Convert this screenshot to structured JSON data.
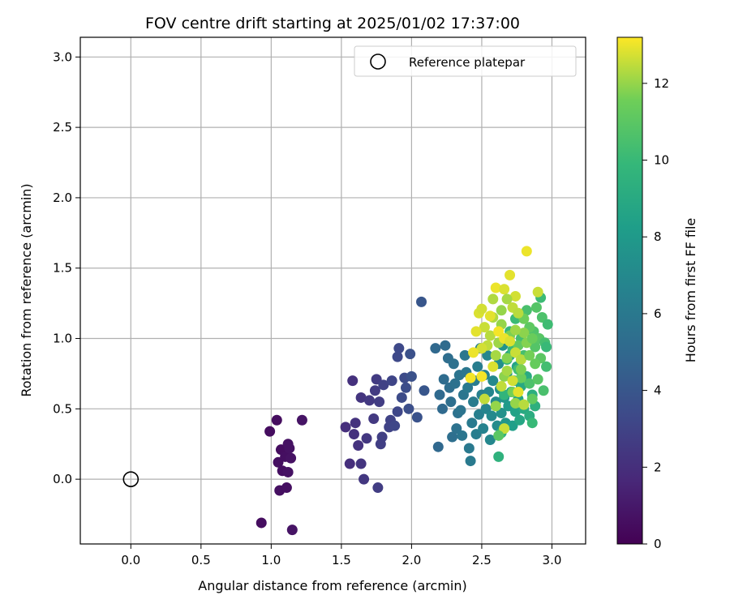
{
  "chart_data": {
    "type": "scatter",
    "title": "FOV centre drift starting at 2025/01/02 17:37:00",
    "xlabel": "Angular distance from reference (arcmin)",
    "ylabel": "Rotation from reference (arcmin)",
    "xlim": [
      -0.36,
      3.24
    ],
    "ylim": [
      -0.46,
      3.14
    ],
    "xticks": [
      "0.0",
      "0.5",
      "1.0",
      "1.5",
      "2.0",
      "2.5",
      "3.0"
    ],
    "yticks": [
      "0.0",
      "0.5",
      "1.0",
      "1.5",
      "2.0",
      "2.5",
      "3.0"
    ],
    "grid": true,
    "legend": {
      "label": "Reference platepar",
      "placement": "top-right"
    },
    "reference_point": {
      "x": 0.0,
      "y": 0.0
    },
    "colorbar": {
      "label": "Hours from first FF file",
      "colormap": "viridis",
      "range": [
        0,
        13.2
      ],
      "ticks": [
        "0",
        "2",
        "4",
        "6",
        "8",
        "10",
        "12"
      ]
    },
    "points": [
      [
        0.93,
        -0.31,
        0.5
      ],
      [
        0.99,
        0.34,
        0.5
      ],
      [
        1.04,
        0.42,
        0.5
      ],
      [
        1.05,
        0.12,
        0.6
      ],
      [
        1.06,
        -0.08,
        0.6
      ],
      [
        1.07,
        0.21,
        0.5
      ],
      [
        1.08,
        0.06,
        0.6
      ],
      [
        1.1,
        0.16,
        0.6
      ],
      [
        1.11,
        -0.06,
        0.6
      ],
      [
        1.12,
        0.05,
        0.7
      ],
      [
        1.12,
        0.25,
        0.7
      ],
      [
        1.13,
        0.22,
        0.7
      ],
      [
        1.14,
        0.15,
        0.7
      ],
      [
        1.15,
        -0.36,
        0.8
      ],
      [
        1.22,
        0.42,
        0.8
      ],
      [
        1.53,
        0.37,
        2.0
      ],
      [
        1.56,
        0.11,
        2.0
      ],
      [
        1.58,
        0.7,
        2.1
      ],
      [
        1.59,
        0.32,
        2.1
      ],
      [
        1.6,
        0.4,
        2.2
      ],
      [
        1.62,
        0.24,
        2.2
      ],
      [
        1.64,
        0.58,
        2.3
      ],
      [
        1.64,
        0.11,
        2.3
      ],
      [
        1.66,
        0.0,
        2.4
      ],
      [
        1.68,
        0.29,
        2.4
      ],
      [
        1.7,
        0.56,
        2.5
      ],
      [
        1.73,
        0.43,
        2.5
      ],
      [
        1.74,
        0.63,
        2.6
      ],
      [
        1.75,
        0.71,
        2.6
      ],
      [
        1.76,
        -0.06,
        2.7
      ],
      [
        1.77,
        0.55,
        2.7
      ],
      [
        1.78,
        0.25,
        2.8
      ],
      [
        1.79,
        0.3,
        2.8
      ],
      [
        1.8,
        0.67,
        2.9
      ],
      [
        1.84,
        0.37,
        3.0
      ],
      [
        1.85,
        0.42,
        3.0
      ],
      [
        1.86,
        0.7,
        3.1
      ],
      [
        1.88,
        0.38,
        3.2
      ],
      [
        1.9,
        0.48,
        3.2
      ],
      [
        1.9,
        0.87,
        3.3
      ],
      [
        1.91,
        0.93,
        3.3
      ],
      [
        1.93,
        0.58,
        3.4
      ],
      [
        1.95,
        0.72,
        3.4
      ],
      [
        1.96,
        0.65,
        3.5
      ],
      [
        1.98,
        0.5,
        3.6
      ],
      [
        1.99,
        0.89,
        3.7
      ],
      [
        2.0,
        0.73,
        3.7
      ],
      [
        2.04,
        0.44,
        3.8
      ],
      [
        2.07,
        1.26,
        4.0
      ],
      [
        2.09,
        0.63,
        4.0
      ],
      [
        2.17,
        0.93,
        5.0
      ],
      [
        2.19,
        0.23,
        5.0
      ],
      [
        2.2,
        0.6,
        5.1
      ],
      [
        2.22,
        0.5,
        5.1
      ],
      [
        2.23,
        0.71,
        5.2
      ],
      [
        2.24,
        0.95,
        5.2
      ],
      [
        2.26,
        0.86,
        5.3
      ],
      [
        2.27,
        0.65,
        5.3
      ],
      [
        2.28,
        0.55,
        5.4
      ],
      [
        2.29,
        0.3,
        5.4
      ],
      [
        2.3,
        0.82,
        5.5
      ],
      [
        2.31,
        0.68,
        5.5
      ],
      [
        2.32,
        0.36,
        5.6
      ],
      [
        2.33,
        0.47,
        5.6
      ],
      [
        2.34,
        0.74,
        5.7
      ],
      [
        2.35,
        0.49,
        5.7
      ],
      [
        2.36,
        0.31,
        5.8
      ],
      [
        2.37,
        0.6,
        5.8
      ],
      [
        2.38,
        0.88,
        5.9
      ],
      [
        2.39,
        0.76,
        5.9
      ],
      [
        2.4,
        0.65,
        6.0
      ],
      [
        2.41,
        0.22,
        6.0
      ],
      [
        2.42,
        0.13,
        6.1
      ],
      [
        2.43,
        0.4,
        6.1
      ],
      [
        2.44,
        0.55,
        6.2
      ],
      [
        2.45,
        0.7,
        6.2
      ],
      [
        2.46,
        0.32,
        6.3
      ],
      [
        2.47,
        0.8,
        6.3
      ],
      [
        2.48,
        0.46,
        6.4
      ],
      [
        2.49,
        0.93,
        6.4
      ],
      [
        2.5,
        0.6,
        6.5
      ],
      [
        2.51,
        0.36,
        6.6
      ],
      [
        2.52,
        0.74,
        6.6
      ],
      [
        2.53,
        0.5,
        6.7
      ],
      [
        2.54,
        0.88,
        6.8
      ],
      [
        2.55,
        0.62,
        6.8
      ],
      [
        2.56,
        0.28,
        6.9
      ],
      [
        2.57,
        0.45,
        7.0
      ],
      [
        2.58,
        0.7,
        7.0
      ],
      [
        2.6,
        0.55,
        7.1
      ],
      [
        2.61,
        0.38,
        7.2
      ],
      [
        2.62,
        0.82,
        7.3
      ],
      [
        2.63,
        0.64,
        7.4
      ],
      [
        2.64,
        0.47,
        7.5
      ],
      [
        2.65,
        0.95,
        7.6
      ],
      [
        2.66,
        0.58,
        7.7
      ],
      [
        2.67,
        0.4,
        7.8
      ],
      [
        2.68,
        0.75,
        7.9
      ],
      [
        2.69,
        0.52,
        8.0
      ],
      [
        2.7,
        0.88,
        8.1
      ],
      [
        2.71,
        0.62,
        8.2
      ],
      [
        2.72,
        0.38,
        8.3
      ],
      [
        2.73,
        0.7,
        8.4
      ],
      [
        2.74,
        0.48,
        8.5
      ],
      [
        2.75,
        0.8,
        8.6
      ],
      [
        2.76,
        0.57,
        8.7
      ],
      [
        2.77,
        0.42,
        8.8
      ],
      [
        2.78,
        0.66,
        8.9
      ],
      [
        2.8,
        0.5,
        9.0
      ],
      [
        2.82,
        0.73,
        9.1
      ],
      [
        2.84,
        0.45,
        9.2
      ],
      [
        2.86,
        0.6,
        9.3
      ],
      [
        2.88,
        0.52,
        9.4
      ],
      [
        2.62,
        0.16,
        9.5
      ],
      [
        2.64,
        0.33,
        9.6
      ],
      [
        2.66,
        0.6,
        9.7
      ],
      [
        2.68,
        0.85,
        9.8
      ],
      [
        2.7,
        1.05,
        9.9
      ],
      [
        2.72,
        0.92,
        10.0
      ],
      [
        2.74,
        1.14,
        10.1
      ],
      [
        2.76,
        0.78,
        10.2
      ],
      [
        2.78,
        1.0,
        10.3
      ],
      [
        2.8,
        0.88,
        10.4
      ],
      [
        2.82,
        1.2,
        10.5
      ],
      [
        2.84,
        0.68,
        10.6
      ],
      [
        2.86,
        0.4,
        10.0
      ],
      [
        2.87,
        1.05,
        10.7
      ],
      [
        2.88,
        0.94,
        10.8
      ],
      [
        2.89,
        1.22,
        10.8
      ],
      [
        2.9,
        0.71,
        10.9
      ],
      [
        2.91,
        1.0,
        10.9
      ],
      [
        2.92,
        0.86,
        11.0
      ],
      [
        2.93,
        1.15,
        10.6
      ],
      [
        2.94,
        0.63,
        10.5
      ],
      [
        2.95,
        0.97,
        10.4
      ],
      [
        2.96,
        0.8,
        10.3
      ],
      [
        2.97,
        1.1,
        10.2
      ],
      [
        2.92,
        1.29,
        10.1
      ],
      [
        2.96,
        0.94,
        10.0
      ],
      [
        2.84,
        1.08,
        11.1
      ],
      [
        2.86,
        0.57,
        11.2
      ],
      [
        2.88,
        0.82,
        11.3
      ],
      [
        2.76,
        0.95,
        11.2
      ],
      [
        2.78,
        0.72,
        11.4
      ],
      [
        2.8,
        1.14,
        11.5
      ],
      [
        2.72,
        0.62,
        11.6
      ],
      [
        2.7,
        1.02,
        11.7
      ],
      [
        2.68,
        0.86,
        11.8
      ],
      [
        2.66,
        0.73,
        11.9
      ],
      [
        2.74,
        0.54,
        12.0
      ],
      [
        2.64,
        1.1,
        12.0
      ],
      [
        2.62,
        0.97,
        12.1
      ],
      [
        2.6,
        0.88,
        12.2
      ],
      [
        2.58,
        1.15,
        12.3
      ],
      [
        2.56,
        1.02,
        12.4
      ],
      [
        2.54,
        0.95,
        12.5
      ],
      [
        2.52,
        1.08,
        12.6
      ],
      [
        2.5,
        0.93,
        12.7
      ],
      [
        2.48,
        1.18,
        12.8
      ],
      [
        2.46,
        1.05,
        12.9
      ],
      [
        2.44,
        0.9,
        13.0
      ],
      [
        2.42,
        0.72,
        13.1
      ],
      [
        2.6,
        1.36,
        13.0
      ],
      [
        2.66,
        1.35,
        12.8
      ],
      [
        2.7,
        1.45,
        12.9
      ],
      [
        2.74,
        1.3,
        12.7
      ],
      [
        2.82,
        1.62,
        13.0
      ],
      [
        2.9,
        1.33,
        12.6
      ],
      [
        2.72,
        1.22,
        12.5
      ],
      [
        2.76,
        1.18,
        12.4
      ],
      [
        2.68,
        1.28,
        12.2
      ],
      [
        2.64,
        1.2,
        12.0
      ],
      [
        2.58,
        1.28,
        12.3
      ],
      [
        2.5,
        1.21,
        12.7
      ],
      [
        2.56,
        1.16,
        12.9
      ],
      [
        2.62,
        1.05,
        13.1
      ],
      [
        2.66,
        1.0,
        13.0
      ],
      [
        2.7,
        0.98,
        12.8
      ],
      [
        2.74,
        0.9,
        12.6
      ],
      [
        2.78,
        0.85,
        12.4
      ],
      [
        2.68,
        0.77,
        12.2
      ],
      [
        2.64,
        0.66,
        12.5
      ],
      [
        2.72,
        0.7,
        12.7
      ],
      [
        2.76,
        0.62,
        12.9
      ],
      [
        2.8,
        0.53,
        12.4
      ],
      [
        2.6,
        0.52,
        12.0
      ],
      [
        2.66,
        0.36,
        12.6
      ],
      [
        2.62,
        0.31,
        11.0
      ],
      [
        2.52,
        0.57,
        12.5
      ],
      [
        2.5,
        0.73,
        13.1
      ],
      [
        2.58,
        0.8,
        12.8
      ],
      [
        2.82,
        0.97,
        11.8
      ],
      [
        2.84,
        0.88,
        11.6
      ],
      [
        2.8,
        1.04,
        11.9
      ],
      [
        2.86,
        1.0,
        11.4
      ],
      [
        2.78,
        0.78,
        11.7
      ],
      [
        2.74,
        1.06,
        12.1
      ]
    ]
  }
}
